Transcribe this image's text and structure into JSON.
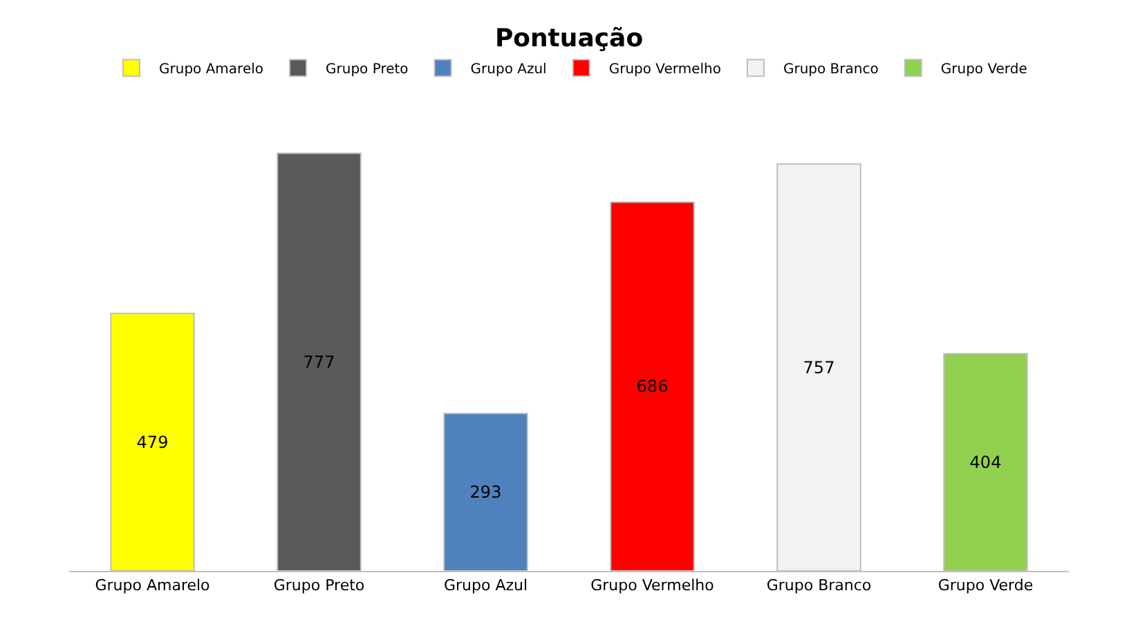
{
  "chart_data": {
    "type": "bar",
    "title": "Pontuação",
    "categories": [
      "Grupo Amarelo",
      "Grupo Preto",
      "Grupo Azul",
      "Grupo Vermelho",
      "Grupo Branco",
      "Grupo Verde"
    ],
    "series": [
      {
        "name": "Grupo Amarelo",
        "color": "#ffff00",
        "values": [
          479,
          null,
          null,
          null,
          null,
          null
        ]
      },
      {
        "name": "Grupo Preto",
        "color": "#595959",
        "values": [
          null,
          777,
          null,
          null,
          null,
          null
        ]
      },
      {
        "name": "Grupo Azul",
        "color": "#4f81bd",
        "values": [
          null,
          null,
          293,
          null,
          null,
          null
        ]
      },
      {
        "name": "Grupo Vermelho",
        "color": "#ff0000",
        "values": [
          null,
          null,
          null,
          686,
          null,
          null
        ]
      },
      {
        "name": "Grupo Branco",
        "color": "#f2f2f2",
        "values": [
          null,
          null,
          null,
          null,
          757,
          null
        ]
      },
      {
        "name": "Grupo Verde",
        "color": "#92d050",
        "values": [
          null,
          null,
          null,
          null,
          null,
          404
        ]
      }
    ],
    "data_labels": true,
    "legend": "top",
    "tick_labels": "x"
  }
}
